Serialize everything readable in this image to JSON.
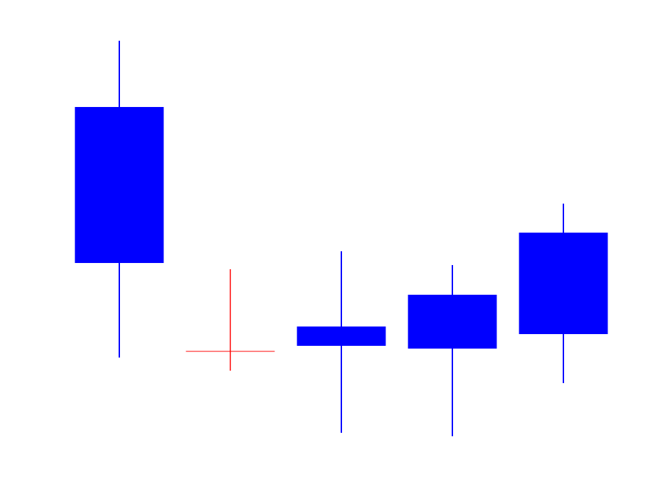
{
  "chart_data": {
    "type": "candlestick",
    "categories": [
      null,
      null,
      null,
      null,
      null
    ],
    "open": [
      56.5,
      21.1,
      24.7,
      29.3,
      38.3
    ],
    "high": [
      66.1,
      33.0,
      35.6,
      33.6,
      42.5
    ],
    "low": [
      20.2,
      18.3,
      9.3,
      8.8,
      16.5
    ],
    "close": [
      33.9,
      21.1,
      21.9,
      21.5,
      23.6
    ],
    "color": "#0000ff",
    "doji_color": "#ff0000",
    "ylim": [
      0,
      72
    ]
  }
}
